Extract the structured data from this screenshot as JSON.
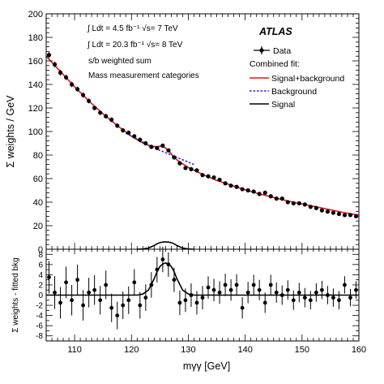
{
  "chart_data": [
    {
      "panel": "top",
      "type": "scatter",
      "x_range": [
        105,
        160
      ],
      "ylim": [
        0,
        200
      ],
      "x_ticks": [
        "110",
        "120",
        "130",
        "140",
        "150",
        "160"
      ],
      "y_ticks": [
        "0",
        "20",
        "40",
        "60",
        "80",
        "100",
        "120",
        "140",
        "160",
        "180",
        "200"
      ],
      "ylabel": "Σ weights / GeV",
      "annotations": [
        "∫ Ldt = 4.5 fb⁻¹ √s= 7 TeV",
        "∫ Ldt = 20.3 fb⁻¹ √s= 8 TeV",
        "s/b weighted sum",
        "Mass measurement categories"
      ],
      "experiment_label": "ATLAS",
      "legend_title": "Combined fit:",
      "legend_position": "top-right",
      "series": [
        {
          "name": "Data",
          "style": "points",
          "color": "#000000",
          "x": [
            105.5,
            106.5,
            107.5,
            108.5,
            109.5,
            110.5,
            111.5,
            112.5,
            113.5,
            114.5,
            115.5,
            116.5,
            117.5,
            118.5,
            119.5,
            120.5,
            121.5,
            122.5,
            123.5,
            124.5,
            125.5,
            126.5,
            127.5,
            128.5,
            129.5,
            130.5,
            131.5,
            132.5,
            133.5,
            134.5,
            135.5,
            136.5,
            137.5,
            138.5,
            139.5,
            140.5,
            141.5,
            142.5,
            143.5,
            144.5,
            145.5,
            146.5,
            147.5,
            148.5,
            149.5,
            150.5,
            151.5,
            152.5,
            153.5,
            154.5,
            155.5,
            156.5,
            157.5,
            158.5,
            159.5
          ],
          "y": [
            165,
            157,
            150,
            146,
            140,
            136,
            131,
            126,
            120,
            116,
            113,
            110,
            105,
            101,
            99,
            96,
            93,
            90,
            87,
            86,
            88,
            84,
            78,
            73,
            69,
            68,
            67,
            63,
            62,
            61,
            59,
            56,
            54,
            53,
            51,
            50,
            49,
            47,
            48,
            45,
            43,
            43,
            40,
            39,
            39,
            38,
            36,
            35,
            33,
            32,
            31,
            30,
            29,
            29,
            28
          ],
          "yerr": [
            2.5,
            2.4,
            2.4,
            2.3,
            2.3,
            2.2,
            2.2,
            2.1,
            2.1,
            2.0,
            2.0,
            2.0,
            1.9,
            1.9,
            1.9,
            1.8,
            1.8,
            1.8,
            1.7,
            1.7,
            1.7,
            1.7,
            1.6,
            1.6,
            1.5,
            1.5,
            1.5,
            1.5,
            1.5,
            1.4,
            1.4,
            1.4,
            1.4,
            1.3,
            1.3,
            1.3,
            1.3,
            1.3,
            1.3,
            1.2,
            1.2,
            1.2,
            1.2,
            1.2,
            1.2,
            1.1,
            1.1,
            1.1,
            1.1,
            1.1,
            1.1,
            1.0,
            1.0,
            1.0,
            1.0
          ]
        },
        {
          "name": "Signal+background",
          "style": "line",
          "color": "#e8141c",
          "x": [
            105,
            107.5,
            110,
            112.5,
            115,
            117.5,
            120,
            121.5,
            122.5,
            123.5,
            124.5,
            125,
            125.5,
            126,
            126.5,
            127.5,
            128.5,
            130,
            132.5,
            135,
            137.5,
            140,
            142.5,
            145,
            147.5,
            150,
            152.5,
            155,
            157.5,
            160
          ],
          "y": [
            164,
            151,
            138,
            126,
            115,
            105,
            96,
            91.5,
            89,
            87.5,
            87,
            87.5,
            87,
            86,
            84,
            78,
            74,
            69.5,
            63.5,
            58.5,
            54.5,
            50.5,
            47,
            44,
            41,
            38.5,
            36,
            33.5,
            31,
            29
          ]
        },
        {
          "name": "Background",
          "style": "dashed",
          "color": "#1f2ad9",
          "x": [
            119,
            120,
            121,
            122,
            123,
            124,
            125,
            126,
            127,
            128,
            129,
            130,
            131
          ],
          "y": [
            98.5,
            96,
            93.5,
            91,
            88.5,
            86,
            84,
            82,
            80,
            78,
            76,
            74,
            72
          ]
        },
        {
          "name": "Signal",
          "style": "line",
          "color": "#000000",
          "x": [
            121,
            122,
            123,
            124,
            124.5,
            125,
            125.5,
            126,
            126.5,
            127,
            127.5,
            128,
            129,
            130,
            131
          ],
          "y": [
            0,
            0.2,
            1,
            3.2,
            4.6,
            5.6,
            6.1,
            6.3,
            6.1,
            5.6,
            4.6,
            3.2,
            1,
            0.2,
            0
          ]
        }
      ]
    },
    {
      "panel": "bottom",
      "type": "scatter",
      "x_range": [
        105,
        160
      ],
      "ylim": [
        -9,
        9
      ],
      "x_ticks": [
        "110",
        "120",
        "130",
        "140",
        "150",
        "160"
      ],
      "y_ticks": [
        "-8",
        "-6",
        "-4",
        "-2",
        "0",
        "2",
        "4",
        "6",
        "8"
      ],
      "xlabel": "mγγ [GeV]",
      "ylabel": "Σ weights - fitted bkg",
      "series": [
        {
          "name": "Data",
          "style": "points",
          "color": "#000000",
          "x": [
            105.5,
            106.5,
            107.5,
            108.5,
            109.5,
            110.5,
            111.5,
            112.5,
            113.5,
            114.5,
            115.5,
            116.5,
            117.5,
            118.5,
            119.5,
            120.5,
            121.5,
            122.5,
            123.5,
            124.5,
            125.5,
            126.5,
            127.5,
            128.5,
            129.5,
            130.5,
            131.5,
            132.5,
            133.5,
            134.5,
            135.5,
            136.5,
            137.5,
            138.5,
            139.5,
            140.5,
            141.5,
            142.5,
            143.5,
            144.5,
            145.5,
            146.5,
            147.5,
            148.5,
            149.5,
            150.5,
            151.5,
            152.5,
            153.5,
            154.5,
            155.5,
            156.5,
            157.5,
            158.5,
            159.5
          ],
          "y": [
            3.5,
            0.5,
            -1.5,
            2.5,
            -1,
            3,
            -2,
            0.5,
            1,
            -1,
            2,
            -2.5,
            -4,
            -2,
            -1,
            2.5,
            -2,
            -0.5,
            2,
            5,
            7,
            6,
            3,
            -1.5,
            -1,
            0,
            -1.5,
            -0.5,
            1.5,
            1,
            0.5,
            2,
            1,
            2,
            -2.5,
            0.5,
            2,
            1,
            -1.5,
            2,
            0.5,
            0,
            1,
            -1,
            0.5,
            -0.5,
            -1,
            0.5,
            1,
            0,
            -0.5,
            -1,
            2,
            -0.5,
            1
          ],
          "yerr": [
            3.2,
            3.2,
            3.1,
            3.1,
            3.0,
            3.0,
            3.0,
            2.9,
            2.9,
            2.8,
            2.8,
            2.8,
            2.7,
            2.7,
            2.7,
            2.6,
            2.6,
            2.6,
            2.5,
            2.5,
            2.5,
            2.4,
            2.4,
            2.4,
            2.3,
            2.3,
            2.3,
            2.3,
            2.2,
            2.2,
            2.2,
            2.2,
            2.1,
            2.1,
            2.1,
            2.1,
            2.0,
            2.0,
            2.0,
            2.0,
            2.0,
            1.9,
            1.9,
            1.9,
            1.9,
            1.9,
            1.8,
            1.8,
            1.8,
            1.8,
            1.8,
            1.8,
            1.7,
            1.7,
            1.7
          ]
        },
        {
          "name": "Signal",
          "style": "line",
          "color": "#000000",
          "x": [
            105,
            121,
            122,
            123,
            124,
            124.5,
            125,
            125.5,
            126,
            126.5,
            127,
            127.5,
            128,
            129,
            130,
            131,
            160
          ],
          "y": [
            0,
            0,
            0.2,
            1,
            3.2,
            4.6,
            5.6,
            6.1,
            6.3,
            6.1,
            5.6,
            4.6,
            3.2,
            1,
            0.2,
            0,
            0
          ]
        }
      ]
    }
  ],
  "legend": {
    "data_label": "Data",
    "fit_title": "Combined fit:",
    "sb_label": "Signal+background",
    "bkg_label": "Background",
    "sig_label": "Signal"
  }
}
